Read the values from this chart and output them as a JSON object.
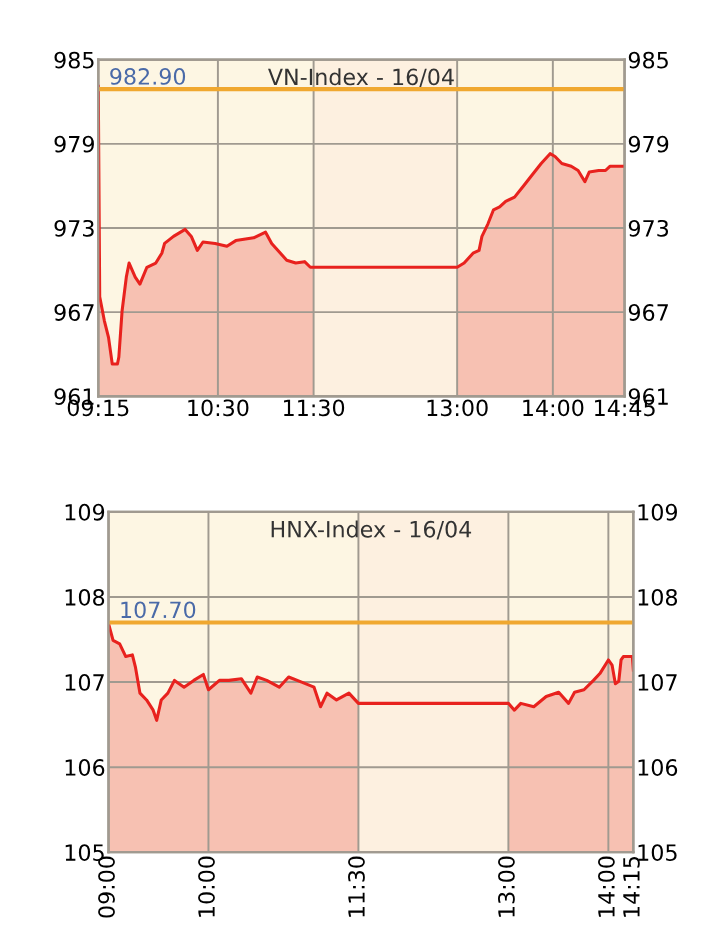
{
  "chart_data": [
    {
      "type": "area",
      "title": "VN-Index - 16/04",
      "x": [
        9.25,
        9.265,
        9.313,
        9.357,
        9.396,
        9.45,
        9.465,
        9.499,
        9.543,
        9.572,
        9.636,
        9.685,
        9.758,
        9.851,
        9.914,
        9.943,
        10.036,
        10.158,
        10.222,
        10.285,
        10.344,
        10.471,
        10.594,
        10.687,
        10.874,
        10.998,
        11.062,
        11.219,
        11.313,
        11.406,
        11.466,
        11.5,
        13.0,
        13.073,
        13.166,
        13.229,
        13.259,
        13.322,
        13.38,
        13.444,
        13.507,
        13.6,
        13.693,
        13.785,
        13.878,
        13.971,
        14.023,
        14.094,
        14.192,
        14.264,
        14.335,
        14.381,
        14.479,
        14.55,
        14.596,
        14.75
      ],
      "series": [
        {
          "color": "#e8221e",
          "values": [
            983.1,
            968.1,
            966.4,
            965.2,
            963.3,
            963.3,
            963.8,
            967.1,
            969.5,
            970.5,
            969.5,
            969.0,
            970.2,
            970.5,
            971.2,
            971.9,
            972.4,
            972.9,
            972.4,
            971.4,
            972.0,
            971.9,
            971.7,
            972.1,
            972.3,
            972.7,
            971.9,
            970.7,
            970.5,
            970.6,
            970.2,
            970.2,
            970.2,
            970.5,
            971.2,
            971.4,
            972.4,
            973.3,
            974.3,
            974.5,
            974.9,
            975.2,
            976.0,
            976.8,
            977.6,
            978.3,
            978.1,
            977.6,
            977.4,
            977.1,
            976.3,
            977.0,
            977.1,
            977.1,
            977.4,
            977.4
          ]
        }
      ],
      "xlim": [
        9.25,
        14.75
      ],
      "xticks": [
        {
          "value": 9.25,
          "label": "09:15"
        },
        {
          "value": 10.5,
          "label": "10:30"
        },
        {
          "value": 11.5,
          "label": "11:30"
        },
        {
          "value": 13,
          "label": "13:00"
        },
        {
          "value": 14,
          "label": "14:00"
        },
        {
          "value": 14.75,
          "label": "14:45"
        }
      ],
      "ylim": [
        961,
        985
      ],
      "yticks": [
        961,
        967,
        973,
        979,
        985
      ],
      "y2lim": [
        961,
        985
      ],
      "y2ticks": [
        961,
        967,
        973,
        979,
        985
      ],
      "ref_lines": [
        {
          "axis": "y",
          "value": 982.9,
          "label": "982.90",
          "color": "#f0a830"
        }
      ],
      "bands": [
        {
          "axis": "x",
          "from": 11.5,
          "to": 13,
          "color": "#fdf0e0"
        }
      ],
      "grid": true,
      "legend": false
    },
    {
      "type": "area",
      "title": "HNX-Index - 16/04",
      "x": [
        9,
        9.046,
        9.112,
        9.173,
        9.239,
        9.269,
        9.315,
        9.381,
        9.447,
        9.482,
        9.528,
        9.594,
        9.66,
        9.756,
        9.853,
        9.949,
        10.0,
        10.11,
        10.204,
        10.329,
        10.424,
        10.488,
        10.583,
        10.708,
        10.802,
        10.932,
        11.056,
        11.121,
        11.186,
        11.281,
        11.405,
        11.5,
        13.0,
        13.06,
        13.124,
        13.254,
        13.378,
        13.503,
        13.602,
        13.662,
        13.756,
        13.851,
        13.915,
        14.0,
        14.037,
        14.07,
        14.104,
        14.127,
        14.15,
        14.24,
        14.25
      ],
      "series": [
        {
          "color": "#e8221e",
          "values": [
            107.69,
            107.49,
            107.45,
            107.3,
            107.32,
            107.18,
            106.87,
            106.79,
            106.67,
            106.55,
            106.79,
            106.87,
            107.02,
            106.94,
            107.02,
            107.09,
            106.91,
            107.02,
            107.02,
            107.04,
            106.87,
            107.06,
            107.02,
            106.94,
            107.06,
            107.0,
            106.94,
            106.71,
            106.87,
            106.79,
            106.87,
            106.75,
            106.75,
            106.67,
            106.75,
            106.71,
            106.83,
            106.88,
            106.75,
            106.88,
            106.91,
            107.02,
            107.1,
            107.26,
            107.2,
            106.98,
            107.01,
            107.26,
            107.3,
            107.3,
            107.14
          ]
        }
      ],
      "xlim": [
        9,
        14.25
      ],
      "xticks": [
        {
          "value": 9,
          "label": "09:00"
        },
        {
          "value": 10,
          "label": "10:00"
        },
        {
          "value": 11.5,
          "label": "11:30"
        },
        {
          "value": 13,
          "label": "13:00"
        },
        {
          "value": 14,
          "label": "14:00"
        },
        {
          "value": 14.25,
          "label": "14:15"
        }
      ],
      "ylim": [
        105,
        109
      ],
      "yticks": [
        105,
        106,
        107,
        108,
        109
      ],
      "y2lim": [
        105,
        109
      ],
      "y2ticks": [
        105,
        106,
        107,
        108,
        109
      ],
      "ref_lines": [
        {
          "axis": "y",
          "value": 107.7,
          "label": "107.70",
          "color": "#f0a830"
        }
      ],
      "bands": [
        {
          "axis": "x",
          "from": 11.5,
          "to": 13,
          "color": "#fdf0e0"
        }
      ],
      "grid": true,
      "legend": false
    }
  ]
}
